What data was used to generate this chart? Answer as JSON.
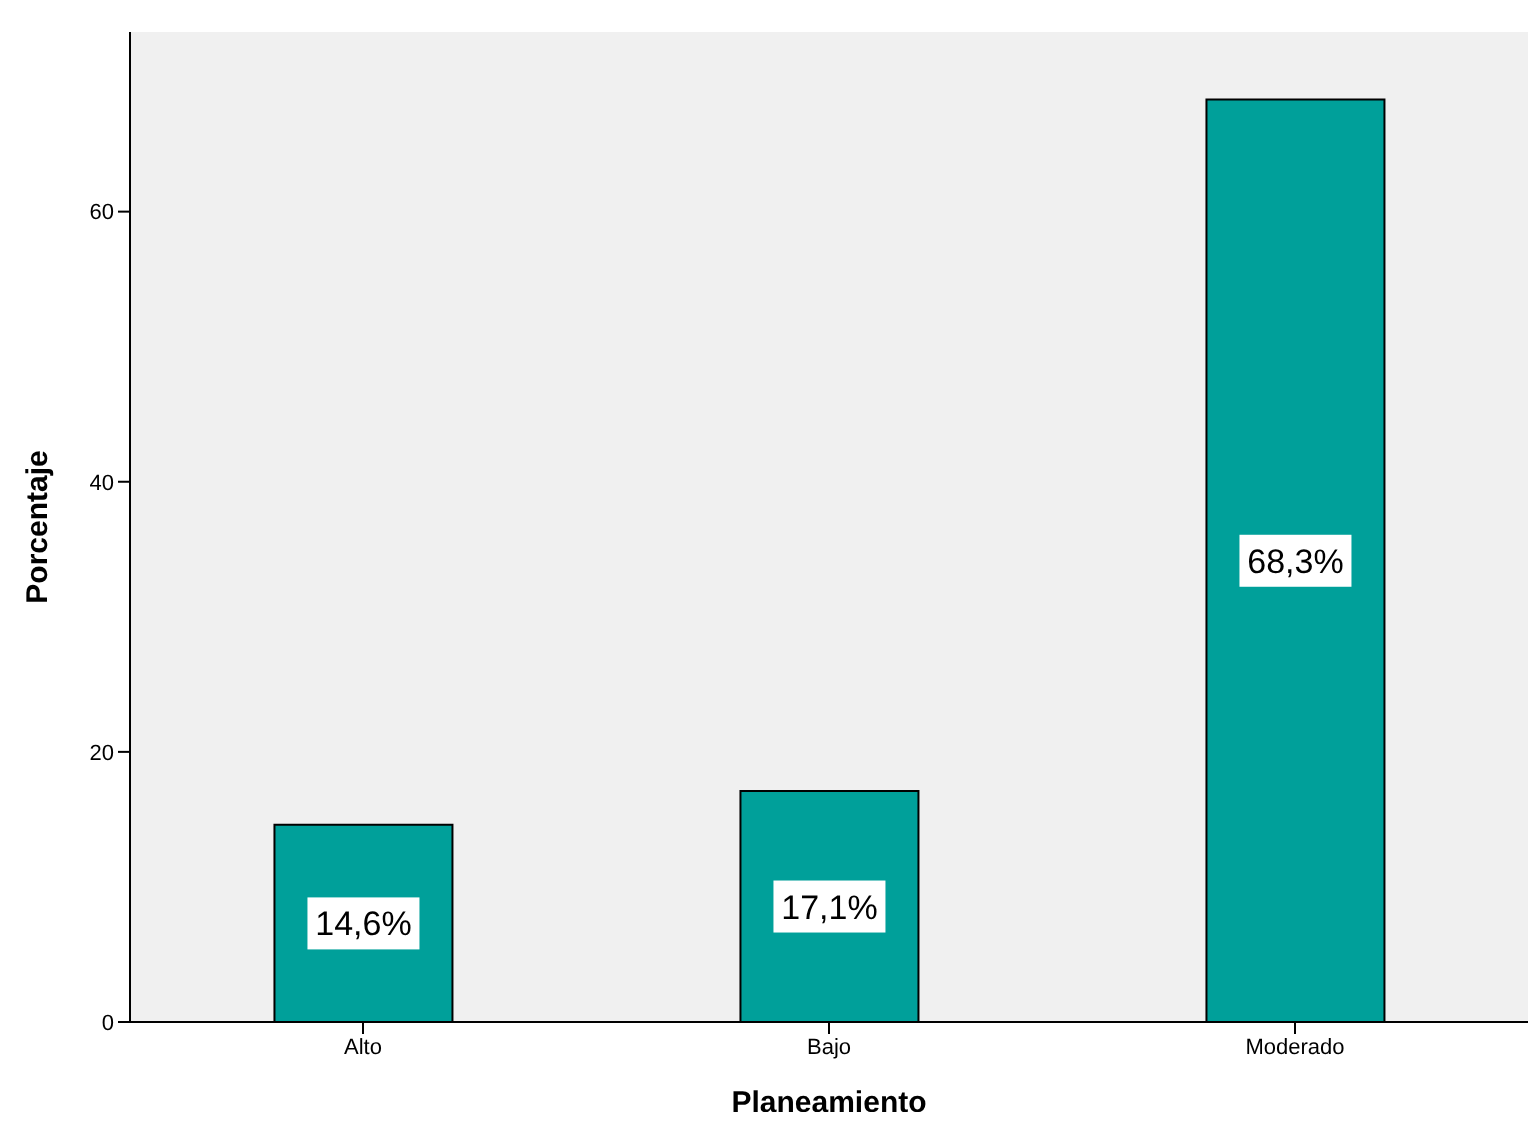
{
  "chart_data": {
    "type": "bar",
    "xlabel": "Planeamiento",
    "ylabel": "Porcentaje",
    "categories": [
      "Alto",
      "Bajo",
      "Moderado"
    ],
    "values": [
      14.6,
      17.1,
      68.3
    ],
    "color": "#00a09a",
    "value_labels": [
      "14,6%",
      "17,1%",
      "68,3%"
    ],
    "ylim": [
      0,
      73.3
    ],
    "yticks": [
      0,
      20,
      40,
      60
    ],
    "grid": false,
    "legend": false
  }
}
